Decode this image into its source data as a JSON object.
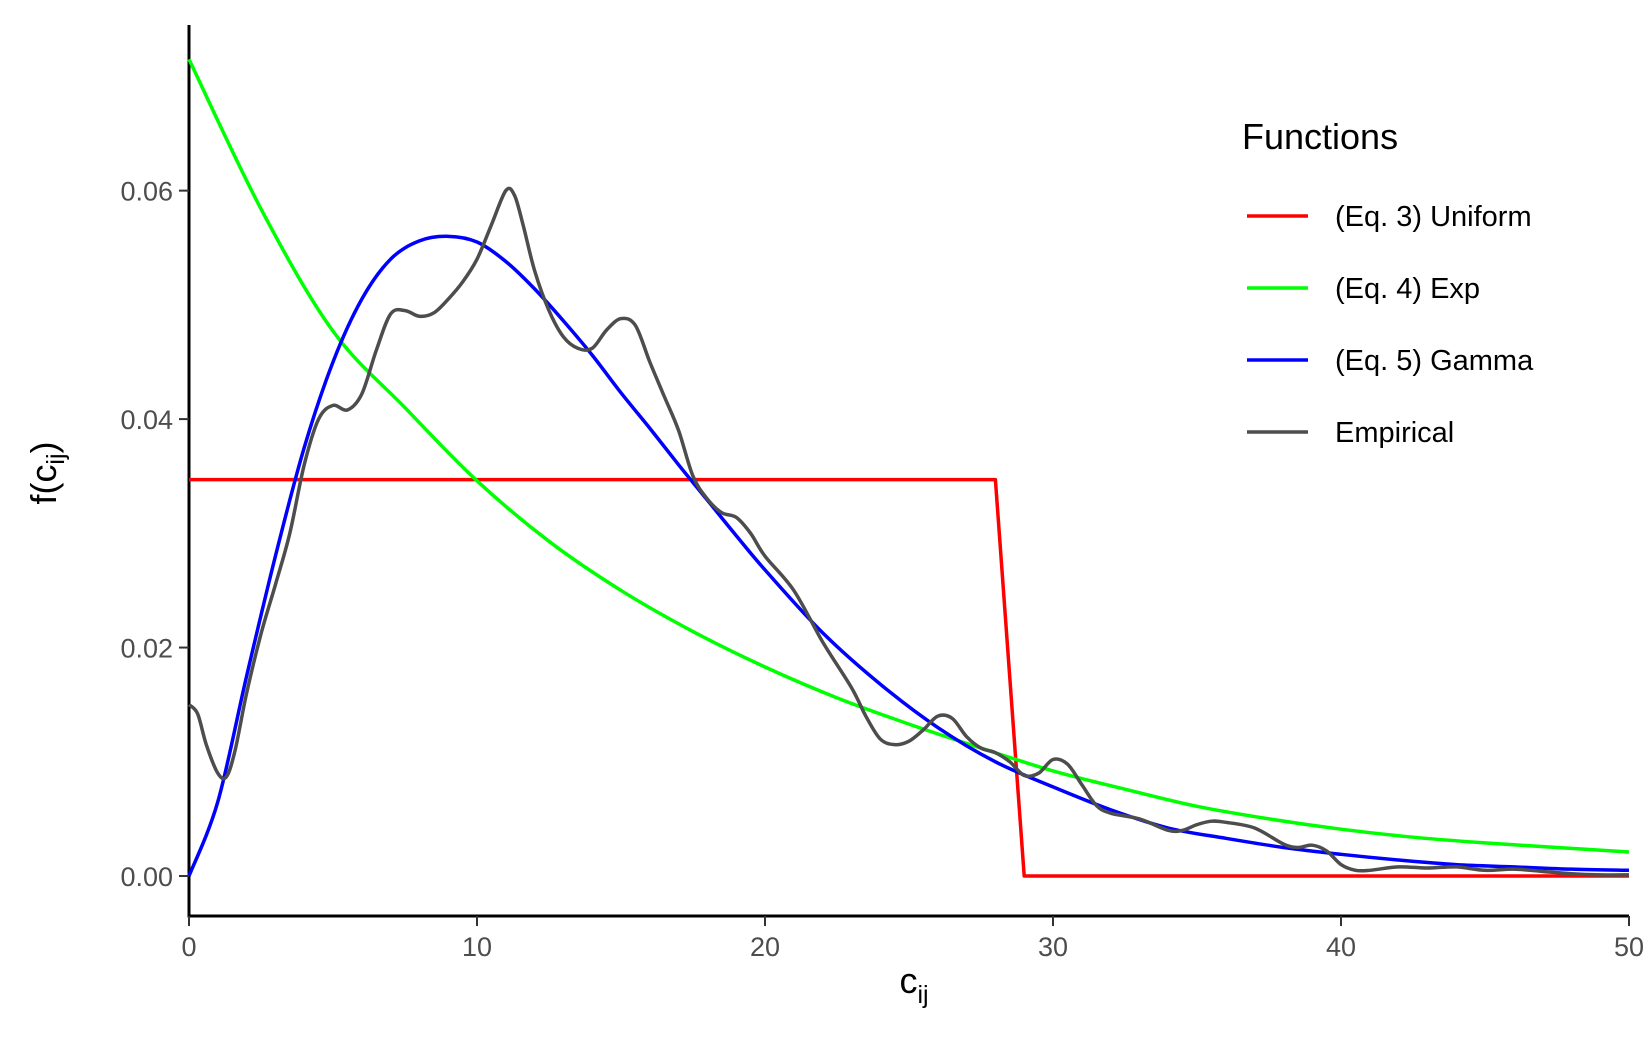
{
  "chart_data": {
    "type": "line",
    "title": "",
    "xlabel": "c",
    "xlabel_sub": "ij",
    "ylabel_prefix": "f(c",
    "ylabel_sub": "ij",
    "ylabel_suffix": ")",
    "xlim": [
      0,
      50
    ],
    "ylim": [
      -0.0035,
      0.0745
    ],
    "x_ticks": [
      0,
      10,
      20,
      30,
      40,
      50
    ],
    "x_tick_labels": [
      "0",
      "10",
      "20",
      "30",
      "40",
      "50"
    ],
    "y_ticks": [
      0,
      0.02,
      0.04,
      0.06
    ],
    "y_tick_labels": [
      "0.00",
      "0.02",
      "0.04",
      "0.06"
    ],
    "grid": false,
    "legend": {
      "title": "Functions",
      "position": "right"
    },
    "series": [
      {
        "name": "(Eq. 3) Uniform",
        "color": "#ff0000",
        "x": [
          0,
          28,
          29,
          50
        ],
        "y": [
          0.0347,
          0.0347,
          0,
          0
        ]
      },
      {
        "name": "(Eq. 4) Exp",
        "color": "#00ff00",
        "x": [
          0,
          2.5,
          5,
          7.5,
          10,
          12.5,
          15,
          17.5,
          20,
          22.5,
          25,
          27.5,
          30,
          32.5,
          35,
          37.5,
          40,
          42.5,
          45,
          47.5,
          50
        ],
        "y": [
          0.0715,
          0.0584,
          0.0477,
          0.041,
          0.0346,
          0.0293,
          0.025,
          0.0214,
          0.0183,
          0.0156,
          0.0133,
          0.0112,
          0.0092,
          0.0076,
          0.0061,
          0.005,
          0.0041,
          0.0034,
          0.0029,
          0.0025,
          0.0021
        ]
      },
      {
        "name": "(Eq. 5) Gamma",
        "color": "#0000ff",
        "x": [
          0,
          1,
          2,
          3,
          4,
          5,
          6,
          7,
          8,
          9,
          10,
          11,
          12,
          13,
          14,
          15,
          16,
          17,
          18,
          19,
          20,
          22,
          24,
          26,
          28,
          30,
          32,
          34,
          36,
          38,
          40,
          42,
          44,
          46,
          48,
          50
        ],
        "y": [
          0,
          0.0065,
          0.0175,
          0.028,
          0.0375,
          0.045,
          0.0505,
          0.054,
          0.0556,
          0.056,
          0.0555,
          0.0538,
          0.0514,
          0.0486,
          0.0456,
          0.0423,
          0.0392,
          0.036,
          0.0329,
          0.0298,
          0.0268,
          0.0213,
          0.0168,
          0.013,
          0.01,
          0.0078,
          0.0058,
          0.0042,
          0.0033,
          0.0025,
          0.0019,
          0.0014,
          0.001,
          0.0008,
          0.0006,
          0.0005
        ]
      },
      {
        "name": "Empirical",
        "color": "#4d4d4d",
        "x": [
          0,
          0.3,
          0.6,
          1.0,
          1.3,
          1.6,
          2.0,
          2.5,
          3.0,
          3.5,
          4.0,
          4.5,
          5.0,
          5.5,
          6.0,
          6.5,
          7.0,
          7.5,
          8.0,
          8.5,
          9.0,
          9.5,
          10.0,
          10.5,
          11.0,
          11.3,
          11.6,
          12.0,
          12.5,
          13.0,
          13.5,
          14.0,
          14.5,
          15.0,
          15.5,
          16.0,
          16.5,
          17.0,
          17.5,
          18.0,
          18.5,
          19.0,
          19.5,
          20.0,
          21.0,
          22.0,
          23.0,
          23.5,
          24.0,
          24.5,
          25.0,
          25.5,
          26.0,
          26.5,
          27.0,
          27.5,
          28.0,
          28.5,
          29.0,
          29.5,
          30.0,
          30.5,
          31.0,
          31.5,
          32.0,
          33.0,
          34.0,
          34.5,
          35.0,
          35.5,
          36.0,
          37.0,
          38.0,
          38.5,
          39.0,
          39.5,
          40.0,
          40.5,
          41.0,
          42.0,
          43.0,
          44.0,
          45.0,
          46.0,
          47.0,
          48.0,
          49.0,
          50.0
        ],
        "y": [
          0.015,
          0.0142,
          0.0115,
          0.009,
          0.0087,
          0.011,
          0.016,
          0.0212,
          0.0255,
          0.03,
          0.036,
          0.04,
          0.0412,
          0.0408,
          0.0422,
          0.046,
          0.0492,
          0.0495,
          0.049,
          0.0493,
          0.0505,
          0.052,
          0.054,
          0.057,
          0.06,
          0.0596,
          0.057,
          0.053,
          0.0495,
          0.0472,
          0.0462,
          0.0462,
          0.0478,
          0.0488,
          0.0482,
          0.045,
          0.042,
          0.039,
          0.035,
          0.033,
          0.0318,
          0.0314,
          0.03,
          0.028,
          0.025,
          0.0205,
          0.0165,
          0.014,
          0.012,
          0.0115,
          0.0118,
          0.0128,
          0.014,
          0.0138,
          0.0122,
          0.0112,
          0.0108,
          0.01,
          0.0088,
          0.009,
          0.0102,
          0.0098,
          0.008,
          0.0062,
          0.0055,
          0.005,
          0.004,
          0.004,
          0.0045,
          0.0048,
          0.0047,
          0.0042,
          0.0028,
          0.0025,
          0.0027,
          0.0022,
          0.001,
          0.0005,
          0.0005,
          0.0008,
          0.0007,
          0.0008,
          0.0005,
          0.0006,
          0.0004,
          0.0002,
          0.0001,
          0.0001
        ]
      }
    ]
  }
}
